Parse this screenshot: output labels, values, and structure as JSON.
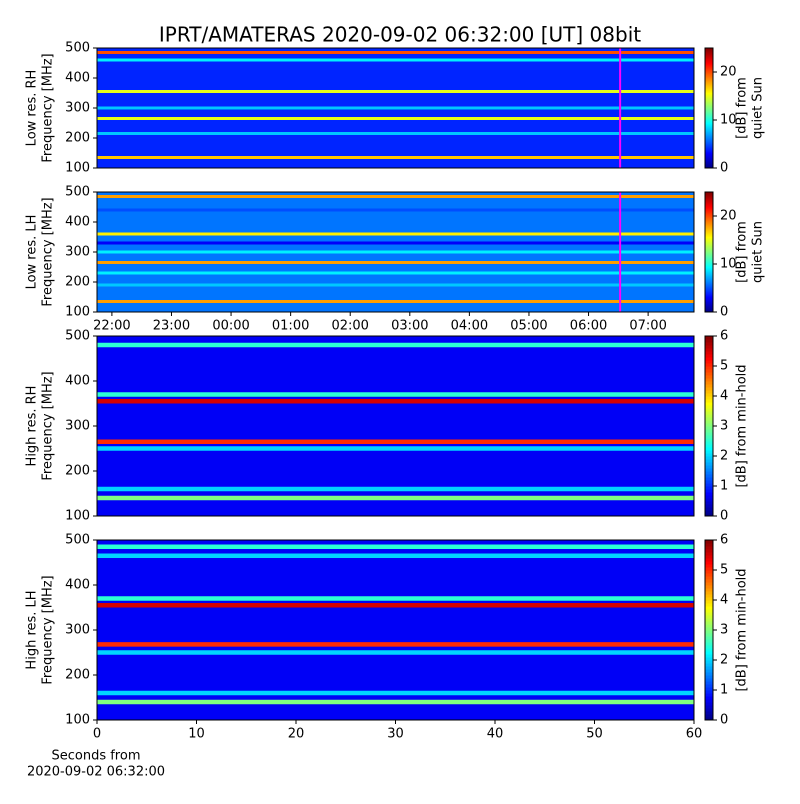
{
  "chart_data": [
    {
      "type": "heatmap",
      "title": "IPRT/AMATERAS 2020-09-02 06:32:00 [UT]   08bit",
      "ylabel": [
        "Low res. RH",
        "Frequency [MHz]"
      ],
      "ylim": [
        100,
        500
      ],
      "yticks": [
        100,
        200,
        300,
        400,
        500
      ],
      "xlim": [
        21.75,
        31.77
      ],
      "marker_x": 30.53,
      "marker_color": "#ff00ff",
      "colormap": "jet",
      "clim": [
        0,
        25
      ],
      "cticks": [
        0,
        10,
        20
      ],
      "clabel": [
        "[dB] from",
        "quiet Sun"
      ],
      "background": 4,
      "bands": [
        {
          "freq": 485,
          "value": 20
        },
        {
          "freq": 460,
          "value": 9
        },
        {
          "freq": 355,
          "value": 15
        },
        {
          "freq": 300,
          "value": 8
        },
        {
          "freq": 265,
          "value": 15
        },
        {
          "freq": 215,
          "value": 8
        },
        {
          "freq": 135,
          "value": 17
        }
      ]
    },
    {
      "type": "heatmap",
      "ylabel": [
        "Low res. LH",
        "Frequency [MHz]"
      ],
      "ylim": [
        100,
        500
      ],
      "yticks": [
        100,
        200,
        300,
        400,
        500
      ],
      "xlim": [
        21.75,
        31.77
      ],
      "xticks": [
        {
          "value": 22,
          "label": "22:00"
        },
        {
          "value": 23,
          "label": "23:00"
        },
        {
          "value": 24,
          "label": "00:00"
        },
        {
          "value": 25,
          "label": "01:00"
        },
        {
          "value": 26,
          "label": "02:00"
        },
        {
          "value": 27,
          "label": "03:00"
        },
        {
          "value": 28,
          "label": "04:00"
        },
        {
          "value": 29,
          "label": "05:00"
        },
        {
          "value": 30,
          "label": "06:00"
        },
        {
          "value": 31,
          "label": "07:00"
        }
      ],
      "marker_x": 30.53,
      "marker_color": "#ff00ff",
      "colormap": "jet",
      "clim": [
        0,
        25
      ],
      "cticks": [
        0,
        10,
        20
      ],
      "clabel": [
        "[dB] from",
        "quiet Sun"
      ],
      "background": 6,
      "bands": [
        {
          "freq": 485,
          "value": 18
        },
        {
          "freq": 440,
          "value": 5
        },
        {
          "freq": 360,
          "value": 16
        },
        {
          "freq": 330,
          "value": 3
        },
        {
          "freq": 300,
          "value": 9
        },
        {
          "freq": 265,
          "value": 18
        },
        {
          "freq": 230,
          "value": 9
        },
        {
          "freq": 190,
          "value": 8
        },
        {
          "freq": 135,
          "value": 18
        }
      ]
    },
    {
      "type": "heatmap",
      "ylabel": [
        "High res. RH",
        "Frequency [MHz]"
      ],
      "ylim": [
        100,
        500
      ],
      "yticks": [
        100,
        200,
        300,
        400,
        500
      ],
      "xlim": [
        0,
        60
      ],
      "colormap": "jet",
      "clim": [
        0,
        6
      ],
      "cticks": [
        0,
        1,
        2,
        3,
        4,
        5,
        6
      ],
      "clabel": [
        "[dB] from min-hold"
      ],
      "background": 0.7,
      "bands": [
        {
          "freq": 480,
          "value": 2.5
        },
        {
          "freq": 370,
          "value": 2.5
        },
        {
          "freq": 355,
          "value": 5.5
        },
        {
          "freq": 265,
          "value": 5
        },
        {
          "freq": 250,
          "value": 2
        },
        {
          "freq": 160,
          "value": 2
        },
        {
          "freq": 140,
          "value": 3
        }
      ]
    },
    {
      "type": "heatmap",
      "ylabel": [
        "High res. LH",
        "Frequency [MHz]"
      ],
      "ylim": [
        100,
        500
      ],
      "yticks": [
        100,
        200,
        300,
        400,
        500
      ],
      "xlim": [
        0,
        60
      ],
      "xticks": [
        0,
        10,
        20,
        30,
        40,
        50,
        60
      ],
      "xlabel": [
        "Seconds from",
        "2020-09-02 06:32:00"
      ],
      "colormap": "jet",
      "clim": [
        0,
        6
      ],
      "cticks": [
        0,
        1,
        2,
        3,
        4,
        5,
        6
      ],
      "clabel": [
        "[dB] from min-hold"
      ],
      "background": 0.7,
      "bands": [
        {
          "freq": 485,
          "value": 2.5
        },
        {
          "freq": 465,
          "value": 2
        },
        {
          "freq": 370,
          "value": 2.5
        },
        {
          "freq": 355,
          "value": 5.5
        },
        {
          "freq": 268,
          "value": 5
        },
        {
          "freq": 250,
          "value": 2
        },
        {
          "freq": 160,
          "value": 2
        },
        {
          "freq": 140,
          "value": 3
        }
      ]
    }
  ]
}
